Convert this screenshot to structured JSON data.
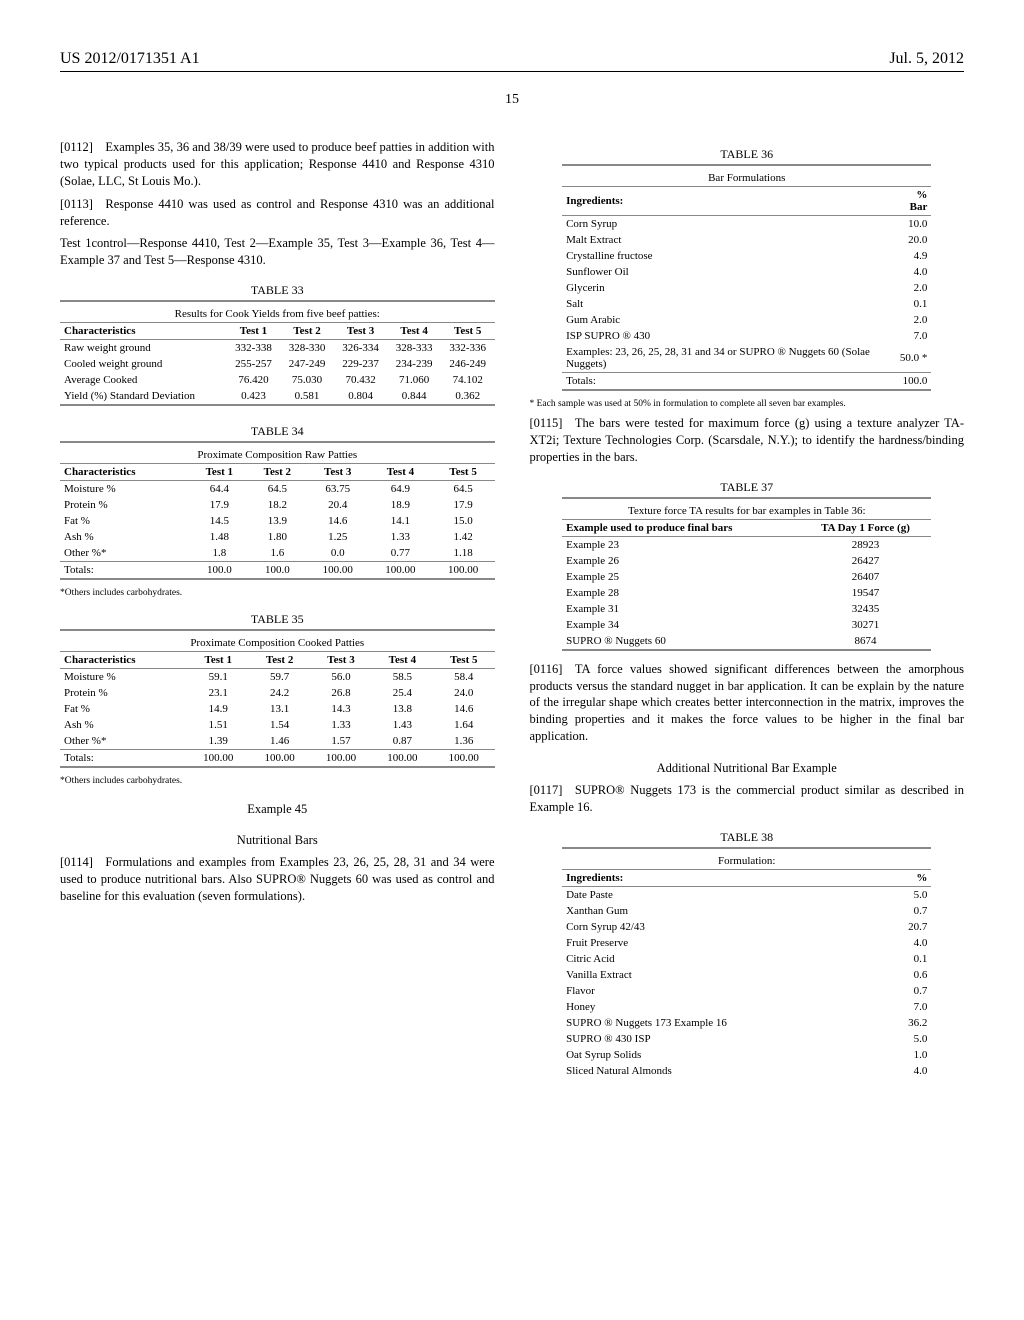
{
  "header": {
    "doc_number": "US 2012/0171351 A1",
    "date": "Jul. 5, 2012",
    "page_number": "15"
  },
  "left": {
    "p112": "[0112] Examples 35, 36 and 38/39 were used to produce beef patties in addition with two typical products used for this application; Response 4410 and Response 4310 (Solae, LLC, St Louis Mo.).",
    "p113": "[0113] Response 4410 was used as control and Response 4310 was an additional reference.",
    "p113b": "Test 1control—Response 4410, Test 2—Example 35, Test 3—Example 36, Test 4—Example 37 and Test 5—Response 4310.",
    "t33": {
      "caption": "TABLE 33",
      "sub": "Results for Cook Yields from five beef patties:",
      "cols": [
        "Characteristics",
        "Test 1",
        "Test 2",
        "Test 3",
        "Test 4",
        "Test 5"
      ],
      "rows": [
        [
          "Raw weight ground",
          "332-338",
          "328-330",
          "326-334",
          "328-333",
          "332-336"
        ],
        [
          "Cooled weight ground",
          "255-257",
          "247-249",
          "229-237",
          "234-239",
          "246-249"
        ],
        [
          "Average Cooked",
          "76.420",
          "75.030",
          "70.432",
          "71.060",
          "74.102"
        ],
        [
          "Yield (%) Standard Deviation",
          "0.423",
          "0.581",
          "0.804",
          "0.844",
          "0.362"
        ]
      ]
    },
    "t34": {
      "caption": "TABLE 34",
      "sub": "Proximate Composition Raw Patties",
      "cols": [
        "Characteristics",
        "Test 1",
        "Test 2",
        "Test 3",
        "Test 4",
        "Test 5"
      ],
      "rows": [
        [
          "Moisture %",
          "64.4",
          "64.5",
          "63.75",
          "64.9",
          "64.5"
        ],
        [
          "Protein %",
          "17.9",
          "18.2",
          "20.4",
          "18.9",
          "17.9"
        ],
        [
          "Fat %",
          "14.5",
          "13.9",
          "14.6",
          "14.1",
          "15.0"
        ],
        [
          "Ash %",
          "1.48",
          "1.80",
          "1.25",
          "1.33",
          "1.42"
        ],
        [
          "Other %*",
          "1.8",
          "1.6",
          "0.0",
          "0.77",
          "1.18"
        ]
      ],
      "totals": [
        "Totals:",
        "100.0",
        "100.0",
        "100.00",
        "100.00",
        "100.00"
      ],
      "note": "*Others includes carbohydrates."
    },
    "t35": {
      "caption": "TABLE 35",
      "sub": "Proximate Composition Cooked Patties",
      "cols": [
        "Characteristics",
        "Test 1",
        "Test 2",
        "Test 3",
        "Test 4",
        "Test 5"
      ],
      "rows": [
        [
          "Moisture %",
          "59.1",
          "59.7",
          "56.0",
          "58.5",
          "58.4"
        ],
        [
          "Protein %",
          "23.1",
          "24.2",
          "26.8",
          "25.4",
          "24.0"
        ],
        [
          "Fat %",
          "14.9",
          "13.1",
          "14.3",
          "13.8",
          "14.6"
        ],
        [
          "Ash %",
          "1.51",
          "1.54",
          "1.33",
          "1.43",
          "1.64"
        ],
        [
          "Other %*",
          "1.39",
          "1.46",
          "1.57",
          "0.87",
          "1.36"
        ]
      ],
      "totals": [
        "Totals:",
        "100.00",
        "100.00",
        "100.00",
        "100.00",
        "100.00"
      ],
      "note": "*Others includes carbohydrates."
    },
    "ex45_head": "Example 45",
    "ex45_sub": "Nutritional Bars",
    "p114": "[0114] Formulations and examples from Examples 23, 26, 25, 28, 31 and 34 were used to produce nutritional bars. Also SUPRO® Nuggets 60 was used as control and baseline for this evaluation (seven formulations)."
  },
  "right": {
    "t36": {
      "caption": "TABLE 36",
      "sub": "Bar Formulations",
      "cols": [
        "Ingredients:",
        "% Bar"
      ],
      "rows": [
        [
          "Corn Syrup",
          "10.0"
        ],
        [
          "Malt Extract",
          "20.0"
        ],
        [
          "Crystalline fructose",
          "4.9"
        ],
        [
          "Sunflower Oil",
          "4.0"
        ],
        [
          "Glycerin",
          "2.0"
        ],
        [
          "Salt",
          "0.1"
        ],
        [
          "Gum Arabic",
          "2.0"
        ],
        [
          "ISP SUPRO ® 430",
          "7.0"
        ],
        [
          "Examples: 23, 26, 25, 28, 31 and 34 or SUPRO ® Nuggets 60 (Solae Nuggets)",
          "50.0 *"
        ]
      ],
      "totals": [
        "Totals:",
        "100.0"
      ],
      "note": "* Each sample was used at 50% in formulation to complete all seven bar examples."
    },
    "p115": "[0115] The bars were tested for maximum force (g) using a texture analyzer TA-XT2i; Texture Technologies Corp. (Scarsdale, N.Y.); to identify the hardness/binding properties in the bars.",
    "t37": {
      "caption": "TABLE 37",
      "sub": "Texture force TA results for bar examples in Table 36:",
      "cols": [
        "Example used to produce final bars",
        "TA Day 1 Force (g)"
      ],
      "rows": [
        [
          "Example 23",
          "28923"
        ],
        [
          "Example 26",
          "26427"
        ],
        [
          "Example 25",
          "26407"
        ],
        [
          "Example 28",
          "19547"
        ],
        [
          "Example 31",
          "32435"
        ],
        [
          "Example 34",
          "30271"
        ],
        [
          "SUPRO ® Nuggets 60",
          "8674"
        ]
      ]
    },
    "p116": "[0116] TA force values showed significant differences between the amorphous products versus the standard nugget in bar application. It can be explain by the nature of the irregular shape which creates better interconnection in the matrix, improves the binding properties and it makes the force values to be higher in the final bar application.",
    "addl_head": "Additional Nutritional Bar Example",
    "p117": "[0117] SUPRO® Nuggets 173 is the commercial product similar as described in Example 16.",
    "t38": {
      "caption": "TABLE 38",
      "sub": "Formulation:",
      "cols": [
        "Ingredients:",
        "%"
      ],
      "rows": [
        [
          "Date Paste",
          "5.0"
        ],
        [
          "Xanthan Gum",
          "0.7"
        ],
        [
          "Corn Syrup 42/43",
          "20.7"
        ],
        [
          "Fruit Preserve",
          "4.0"
        ],
        [
          "Citric Acid",
          "0.1"
        ],
        [
          "Vanilla Extract",
          "0.6"
        ],
        [
          "Flavor",
          "0.7"
        ],
        [
          "Honey",
          "7.0"
        ],
        [
          "SUPRO ® Nuggets 173 Example 16",
          "36.2"
        ],
        [
          "SUPRO ® 430 ISP",
          "5.0"
        ],
        [
          "Oat Syrup Solids",
          "1.0"
        ],
        [
          "Sliced Natural Almonds",
          "4.0"
        ]
      ]
    }
  }
}
